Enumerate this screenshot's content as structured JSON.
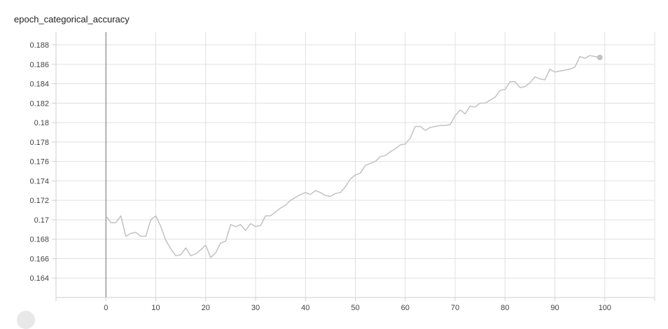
{
  "chart_title": "epoch_categorical_accuracy",
  "colors": {
    "series": "#c2c2c2",
    "last_point": "#c2c2c2"
  },
  "chart_data": {
    "type": "line",
    "title": "epoch_categorical_accuracy",
    "xlabel": "",
    "ylabel": "",
    "xlim": [
      -10,
      110
    ],
    "ylim": [
      0.162,
      0.1893
    ],
    "x_ticks": [
      0,
      10,
      20,
      30,
      40,
      50,
      60,
      70,
      80,
      90,
      100
    ],
    "y_ticks": [
      0.164,
      0.166,
      0.168,
      0.17,
      0.172,
      0.174,
      0.176,
      0.178,
      0.18,
      0.182,
      0.184,
      0.186,
      0.188
    ],
    "grid": true,
    "legend": "none",
    "series": [
      {
        "x": [
          0,
          1,
          2,
          3,
          4,
          5,
          6,
          7,
          8,
          9,
          10,
          11,
          12,
          13,
          14,
          15,
          16,
          17,
          18,
          19,
          20,
          21,
          22,
          23,
          24,
          25,
          26,
          27,
          28,
          29,
          30,
          31,
          32,
          33,
          34,
          35,
          36,
          37,
          38,
          39,
          40,
          41,
          42,
          43,
          44,
          45,
          46,
          47,
          48,
          49,
          50,
          51,
          52,
          53,
          54,
          55,
          56,
          57,
          58,
          59,
          60,
          61,
          62,
          63,
          64,
          65,
          66,
          67,
          68,
          69,
          70,
          71,
          72,
          73,
          74,
          75,
          76,
          77,
          78,
          79,
          80,
          81,
          82,
          83,
          84,
          85,
          86,
          87,
          88,
          89,
          90,
          91,
          92,
          93,
          94,
          95,
          96,
          97,
          98,
          99
        ],
        "values": [
          0.1704,
          0.1697,
          0.1697,
          0.1704,
          0.1683,
          0.1686,
          0.1687,
          0.1683,
          0.1683,
          0.17,
          0.1704,
          0.1693,
          0.1679,
          0.167,
          0.1663,
          0.1664,
          0.1671,
          0.1663,
          0.1665,
          0.1669,
          0.1674,
          0.1661,
          0.1666,
          0.1676,
          0.1678,
          0.1695,
          0.1693,
          0.1695,
          0.1689,
          0.1696,
          0.1693,
          0.1694,
          0.1704,
          0.1704,
          0.1708,
          0.1712,
          0.1715,
          0.172,
          0.1723,
          0.1726,
          0.1728,
          0.1726,
          0.173,
          0.1728,
          0.1725,
          0.1724,
          0.1727,
          0.1728,
          0.1734,
          0.1742,
          0.1746,
          0.1748,
          0.1756,
          0.1758,
          0.176,
          0.1765,
          0.1766,
          0.177,
          0.1773,
          0.1777,
          0.1778,
          0.1784,
          0.1796,
          0.1796,
          0.1792,
          0.1795,
          0.1796,
          0.1797,
          0.1797,
          0.1798,
          0.1807,
          0.1813,
          0.1809,
          0.1817,
          0.1816,
          0.182,
          0.182,
          0.1823,
          0.1826,
          0.1833,
          0.1834,
          0.1842,
          0.1842,
          0.1836,
          0.1837,
          0.1841,
          0.1847,
          0.1845,
          0.1844,
          0.1855,
          0.1852,
          0.1853,
          0.1854,
          0.1855,
          0.1857,
          0.1868,
          0.1866,
          0.1869,
          0.1868,
          0.1867
        ]
      }
    ]
  }
}
